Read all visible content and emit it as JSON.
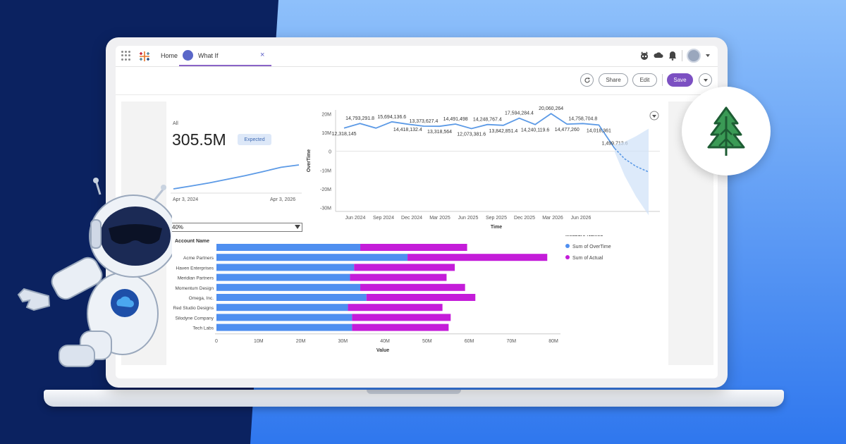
{
  "topbar": {
    "home_tab": "Home",
    "active_tab": "What If",
    "close_glyph": "×",
    "icons": [
      "apps-grid-icon",
      "tableau-logo-icon",
      "agent-icon",
      "cloud-icon",
      "bell-icon",
      "avatar-icon",
      "chevron-down-icon"
    ]
  },
  "actions": {
    "refresh_icon": "refresh-icon",
    "share": "Share",
    "edit": "Edit",
    "save": "Save",
    "more_icon": "chevron-down-icon"
  },
  "kpi": {
    "label": "All",
    "value": "305.5M",
    "badge": "Expected",
    "date_start": "Apr 3, 2024",
    "date_end": "Apr 3, 2026",
    "sparkline": [
      0.0,
      0.12,
      0.25,
      0.4,
      0.55,
      0.72,
      0.9,
      1.0
    ]
  },
  "selector": {
    "value": "40%"
  },
  "chart_data": [
    {
      "type": "line",
      "title": "",
      "xlabel": "Time",
      "ylabel": "OverTime",
      "y_ticks": [
        "20M",
        "10M",
        "0",
        "-10M",
        "-20M",
        "-30M"
      ],
      "y_tick_values": [
        20000000,
        10000000,
        0,
        -10000000,
        -20000000,
        -30000000
      ],
      "x_ticks": [
        "Jun 2024",
        "Sep 2024",
        "Dec 2024",
        "Mar 2025",
        "Jun 2025",
        "Sep 2025",
        "Dec 2025",
        "Mar 2026",
        "Jun 2026"
      ],
      "ylim": [
        -32000000,
        22000000
      ],
      "series": [
        {
          "values": [
            12318145,
            14793291.8,
            12318145,
            15694136.6,
            14418132.4,
            13373627.4,
            13318564,
            14491498,
            12073381.6,
            14248767.4,
            13842851.4,
            17594284.4,
            14240119.6,
            20060264,
            14477260,
            14758704.8,
            14018361,
            1499713.6
          ],
          "labels": [
            "12,318,145",
            "14,793,291.8",
            "",
            "15,694,136.6",
            "14,418,132.4",
            "13,373,627.4",
            "13,318,564",
            "14,491,498",
            "12,073,381.6",
            "14,248,767.4",
            "13,842,851.4",
            "17,594,284.4",
            "14,240,119.6",
            "20,060,264",
            "14,477,260",
            "14,758,704.8",
            "14,018,361",
            "1,499,713.6"
          ]
        }
      ],
      "forecast": [
        1499713.6,
        -4000000,
        -8000000,
        -11000000
      ],
      "more_icon": "chevron-down-circle-icon"
    },
    {
      "type": "bar",
      "orientation": "horizontal",
      "stacked": true,
      "ylabel": "Account Name",
      "xlabel": "Value",
      "x_ticks": [
        "0",
        "10M",
        "20M",
        "30M",
        "40M",
        "50M",
        "60M",
        "70M",
        "80M"
      ],
      "xlim": [
        0,
        82000000
      ],
      "categories": [
        "",
        "Acme Partners",
        "Haven Enterprises",
        "Meridian Partners",
        "Momentum Design",
        "Omega, Inc.",
        "Red Studio Designs",
        "Silodyne Company",
        "Tech Labs"
      ],
      "series": [
        {
          "name": "Sum of OverTime",
          "color": "#4f8ff0",
          "values": [
            35000000,
            46500000,
            33500000,
            32500000,
            35000000,
            36500000,
            32000000,
            33000000,
            33000000
          ]
        },
        {
          "name": "Sum of Actual",
          "color": "#c41cd9",
          "values": [
            26000000,
            34000000,
            24500000,
            23500000,
            25500000,
            26500000,
            23000000,
            24000000,
            23500000
          ]
        }
      ],
      "legend_title": "Measure Names",
      "legend_position": "right"
    }
  ],
  "colors": {
    "accent": "#7c50c2",
    "line": "#5c9ae6",
    "dark_bg": "#0b2260",
    "light_bg": "#7fb2f8"
  },
  "decor": {
    "tree_badge_icon": "pine-tree-icon",
    "robot": "robot-mascot-icon"
  }
}
